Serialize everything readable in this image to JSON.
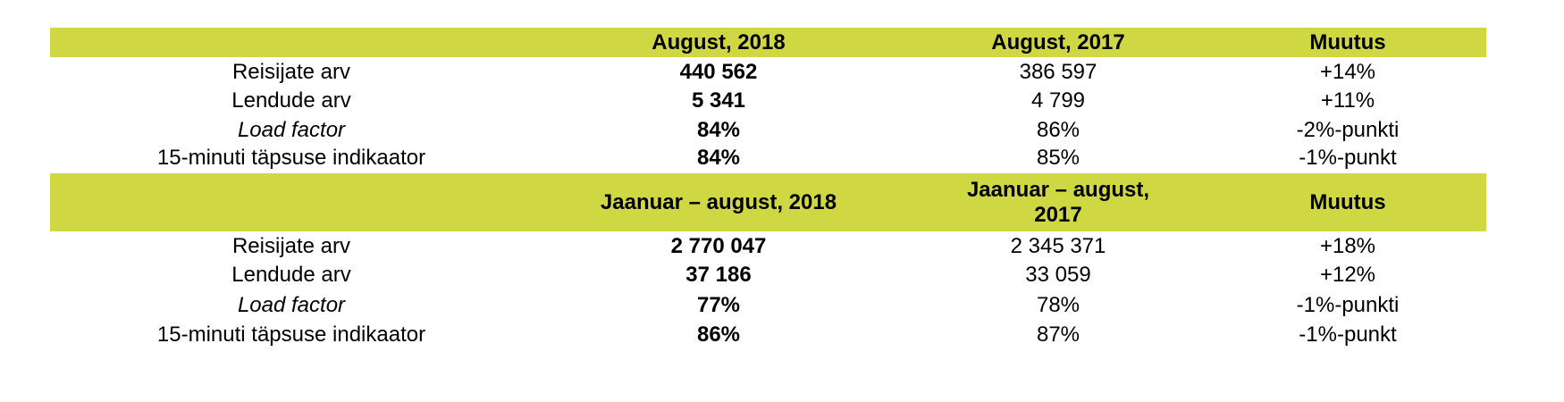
{
  "sections": [
    {
      "header": [
        "August, 2018",
        "August, 2017",
        "Muutus"
      ],
      "rows": [
        [
          "Reisijate arv",
          "440 562",
          "386 597",
          "+14%"
        ],
        [
          "Lendude arv",
          "5 341",
          "4 799",
          "+11%"
        ],
        [
          "Load factor",
          "84%",
          "86%",
          "-2%-punkti"
        ],
        [
          "15-minuti täpsuse indikaator",
          "84%",
          "85%",
          "-1%-punkt"
        ]
      ]
    },
    {
      "header": [
        "Jaanuar – august, 2018",
        "Jaanuar – august, 2017",
        "Muutus"
      ],
      "rows": [
        [
          "Reisijate arv",
          "2 770 047",
          "2 345 371",
          "+18%"
        ],
        [
          "Lendude arv",
          "37 186",
          "33 059",
          "+12%"
        ],
        [
          "Load factor",
          "77%",
          "78%",
          "-1%-punkti"
        ],
        [
          "15-minuti täpsuse indikaator",
          "86%",
          "87%",
          "-1%-punkt"
        ]
      ]
    }
  ]
}
